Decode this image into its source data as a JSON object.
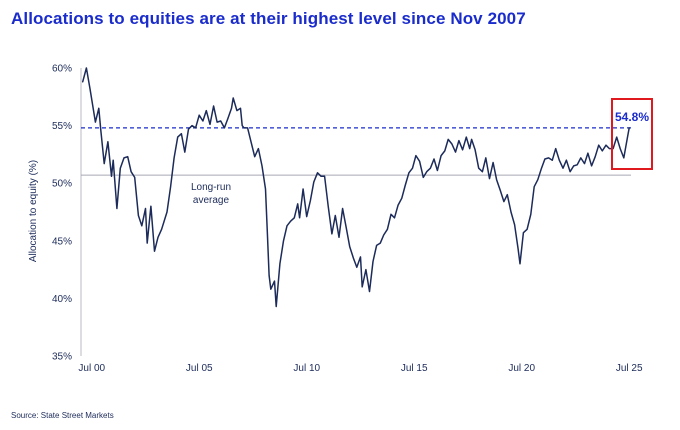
{
  "title": "Allocations to equities are at their highest level since Nov 2007",
  "source": "Source: State Street Markets",
  "chart_data": {
    "type": "line",
    "title": "Allocations to equities are at their highest level since Nov 2007",
    "xlabel": "",
    "ylabel": "Allocation to equity (%)",
    "ylim": [
      35,
      60
    ],
    "xlim": [
      2000.0,
      2025.583
    ],
    "x_ticks": [
      {
        "value": 2000.5,
        "label": "Jul 00"
      },
      {
        "value": 2005.5,
        "label": "Jul 05"
      },
      {
        "value": 2010.5,
        "label": "Jul 10"
      },
      {
        "value": 2015.5,
        "label": "Jul 15"
      },
      {
        "value": 2020.5,
        "label": "Jul 20"
      },
      {
        "value": 2025.5,
        "label": "Jul 25"
      }
    ],
    "y_ticks": [
      {
        "value": 35,
        "label": "35%"
      },
      {
        "value": 40,
        "label": "40%"
      },
      {
        "value": 45,
        "label": "45%"
      },
      {
        "value": 50,
        "label": "50%"
      },
      {
        "value": 55,
        "label": "55%"
      },
      {
        "value": 60,
        "label": "60%"
      }
    ],
    "grid": false,
    "legend": "none",
    "series": [
      {
        "values": [
          [
            2000.08,
            58.8
          ],
          [
            2000.25,
            60.0
          ],
          [
            2000.42,
            58.2
          ],
          [
            2000.67,
            55.3
          ],
          [
            2000.83,
            56.5
          ],
          [
            2000.92,
            54.6
          ],
          [
            2001.08,
            51.7
          ],
          [
            2001.25,
            53.6
          ],
          [
            2001.42,
            50.6
          ],
          [
            2001.5,
            52.0
          ],
          [
            2001.67,
            47.8
          ],
          [
            2001.83,
            51.3
          ],
          [
            2002.0,
            52.2
          ],
          [
            2002.17,
            52.3
          ],
          [
            2002.33,
            51.0
          ],
          [
            2002.5,
            50.5
          ],
          [
            2002.67,
            47.2
          ],
          [
            2002.83,
            46.3
          ],
          [
            2003.0,
            47.8
          ],
          [
            2003.08,
            44.8
          ],
          [
            2003.25,
            48.0
          ],
          [
            2003.42,
            44.1
          ],
          [
            2003.58,
            45.3
          ],
          [
            2003.75,
            46.0
          ],
          [
            2004.0,
            47.5
          ],
          [
            2004.17,
            49.7
          ],
          [
            2004.33,
            52.2
          ],
          [
            2004.5,
            54.0
          ],
          [
            2004.67,
            54.3
          ],
          [
            2004.83,
            52.7
          ],
          [
            2005.0,
            54.7
          ],
          [
            2005.17,
            55.0
          ],
          [
            2005.33,
            54.8
          ],
          [
            2005.5,
            55.9
          ],
          [
            2005.67,
            55.4
          ],
          [
            2005.83,
            56.3
          ],
          [
            2006.0,
            55.1
          ],
          [
            2006.17,
            56.7
          ],
          [
            2006.33,
            55.3
          ],
          [
            2006.5,
            55.4
          ],
          [
            2006.67,
            54.8
          ],
          [
            2006.83,
            55.6
          ],
          [
            2007.0,
            56.5
          ],
          [
            2007.08,
            57.4
          ],
          [
            2007.25,
            56.3
          ],
          [
            2007.42,
            56.5
          ],
          [
            2007.5,
            55.0
          ],
          [
            2007.58,
            54.8
          ],
          [
            2007.75,
            54.8
          ],
          [
            2007.92,
            53.5
          ],
          [
            2008.08,
            52.3
          ],
          [
            2008.25,
            53.0
          ],
          [
            2008.42,
            51.5
          ],
          [
            2008.58,
            49.5
          ],
          [
            2008.67,
            45.6
          ],
          [
            2008.75,
            42.0
          ],
          [
            2008.83,
            40.8
          ],
          [
            2009.0,
            41.5
          ],
          [
            2009.08,
            39.3
          ],
          [
            2009.25,
            43.0
          ],
          [
            2009.42,
            45.0
          ],
          [
            2009.58,
            46.3
          ],
          [
            2009.75,
            46.7
          ],
          [
            2009.92,
            47.0
          ],
          [
            2010.08,
            48.2
          ],
          [
            2010.17,
            47.0
          ],
          [
            2010.33,
            49.5
          ],
          [
            2010.5,
            47.1
          ],
          [
            2010.67,
            48.5
          ],
          [
            2010.83,
            50.1
          ],
          [
            2011.0,
            50.9
          ],
          [
            2011.17,
            50.6
          ],
          [
            2011.33,
            50.6
          ],
          [
            2011.5,
            48.0
          ],
          [
            2011.67,
            45.6
          ],
          [
            2011.83,
            47.2
          ],
          [
            2012.0,
            45.3
          ],
          [
            2012.17,
            47.8
          ],
          [
            2012.33,
            46.2
          ],
          [
            2012.5,
            44.5
          ],
          [
            2012.67,
            43.5
          ],
          [
            2012.83,
            42.7
          ],
          [
            2013.0,
            43.6
          ],
          [
            2013.08,
            41.0
          ],
          [
            2013.25,
            42.5
          ],
          [
            2013.42,
            40.6
          ],
          [
            2013.58,
            43.2
          ],
          [
            2013.75,
            44.6
          ],
          [
            2013.92,
            44.8
          ],
          [
            2014.08,
            45.5
          ],
          [
            2014.25,
            46.0
          ],
          [
            2014.42,
            47.3
          ],
          [
            2014.58,
            47.0
          ],
          [
            2014.75,
            48.1
          ],
          [
            2014.92,
            48.7
          ],
          [
            2015.08,
            49.8
          ],
          [
            2015.25,
            50.9
          ],
          [
            2015.42,
            51.3
          ],
          [
            2015.58,
            52.4
          ],
          [
            2015.75,
            51.9
          ],
          [
            2015.92,
            50.5
          ],
          [
            2016.08,
            51.0
          ],
          [
            2016.25,
            51.3
          ],
          [
            2016.42,
            52.1
          ],
          [
            2016.58,
            51.1
          ],
          [
            2016.75,
            52.4
          ],
          [
            2016.92,
            52.8
          ],
          [
            2017.08,
            53.8
          ],
          [
            2017.25,
            53.4
          ],
          [
            2017.42,
            52.7
          ],
          [
            2017.58,
            53.7
          ],
          [
            2017.75,
            52.9
          ],
          [
            2017.92,
            54.0
          ],
          [
            2018.08,
            53.0
          ],
          [
            2018.17,
            53.8
          ],
          [
            2018.33,
            52.9
          ],
          [
            2018.5,
            51.3
          ],
          [
            2018.67,
            51.0
          ],
          [
            2018.83,
            52.2
          ],
          [
            2019.0,
            50.4
          ],
          [
            2019.17,
            51.8
          ],
          [
            2019.33,
            50.3
          ],
          [
            2019.5,
            49.4
          ],
          [
            2019.67,
            48.4
          ],
          [
            2019.83,
            49.0
          ],
          [
            2020.0,
            47.5
          ],
          [
            2020.17,
            46.4
          ],
          [
            2020.33,
            44.3
          ],
          [
            2020.42,
            43.0
          ],
          [
            2020.58,
            45.7
          ],
          [
            2020.75,
            46.0
          ],
          [
            2020.92,
            47.3
          ],
          [
            2021.08,
            49.7
          ],
          [
            2021.25,
            50.3
          ],
          [
            2021.42,
            51.3
          ],
          [
            2021.58,
            52.1
          ],
          [
            2021.75,
            52.2
          ],
          [
            2021.92,
            52.0
          ],
          [
            2022.08,
            53.0
          ],
          [
            2022.25,
            52.0
          ],
          [
            2022.42,
            51.3
          ],
          [
            2022.58,
            52.0
          ],
          [
            2022.75,
            51.0
          ],
          [
            2022.92,
            51.5
          ],
          [
            2023.08,
            51.6
          ],
          [
            2023.25,
            52.2
          ],
          [
            2023.42,
            51.7
          ],
          [
            2023.58,
            52.6
          ],
          [
            2023.75,
            51.5
          ],
          [
            2023.92,
            52.3
          ],
          [
            2024.08,
            53.3
          ],
          [
            2024.25,
            52.8
          ],
          [
            2024.42,
            53.3
          ],
          [
            2024.58,
            53.0
          ],
          [
            2024.75,
            53.0
          ],
          [
            2024.92,
            54.0
          ],
          [
            2025.08,
            53.0
          ],
          [
            2025.25,
            52.2
          ],
          [
            2025.42,
            54.0
          ],
          [
            2025.5,
            54.8
          ]
        ]
      }
    ],
    "reference_lines": [
      {
        "value": 54.8,
        "style": "dashed",
        "color": "#1a2ccc"
      },
      {
        "value": 50.7,
        "style": "solid",
        "color": "#a6a9b4"
      }
    ],
    "annotations": [
      {
        "text": "Long-run",
        "kind": "reference-label"
      },
      {
        "text": "average",
        "kind": "reference-label"
      },
      {
        "text": "54.8%",
        "kind": "callout",
        "color": "#1a2ccc",
        "box_color": "#e0191e"
      }
    ],
    "colors": {
      "line": "#1c2b5a",
      "axis": "#b8bac3",
      "title": "#1a2ccc",
      "highlight": "#1a2ccc",
      "box": "#e0191e",
      "average": "#a6a9b4"
    }
  }
}
